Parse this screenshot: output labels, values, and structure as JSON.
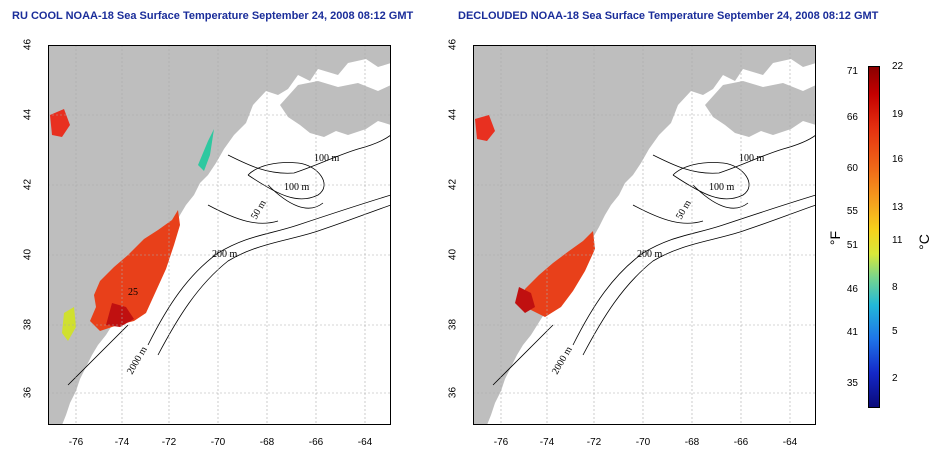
{
  "left_panel": {
    "title": "RU COOL NOAA-18 Sea Surface Temperature September 24, 2008 08:12 GMT",
    "contour_labels": [
      "100 m",
      "100 m",
      "50 m",
      "200 m",
      "2000 m",
      "25"
    ]
  },
  "right_panel": {
    "title": "DECLOUDED NOAA-18 Sea Surface Temperature September 24, 2008 08:12 GMT",
    "contour_labels": [
      "100 m",
      "100 m",
      "50 m",
      "200 m",
      "2000 m"
    ]
  },
  "axes": {
    "y_ticks": [
      "46",
      "44",
      "42",
      "40",
      "38",
      "36"
    ],
    "x_ticks": [
      "-76",
      "-74",
      "-72",
      "-70",
      "-68",
      "-66",
      "-64"
    ]
  },
  "colorbar": {
    "fahrenheit_ticks": [
      "71",
      "66",
      "60",
      "55",
      "51",
      "46",
      "41",
      "35"
    ],
    "celsius_ticks": [
      "22",
      "19",
      "16",
      "13",
      "11",
      "8",
      "5",
      "2"
    ],
    "unit_f": "°F",
    "unit_c": "°C"
  },
  "colors": {
    "land": "#bebebe",
    "title": "#1a2d9a",
    "warm": "#e8401a",
    "hot": "#c01010"
  }
}
